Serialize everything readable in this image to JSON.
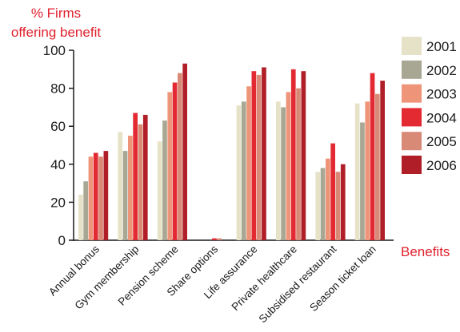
{
  "chart_data": {
    "type": "bar",
    "ylabel_line1": "% Firms",
    "ylabel_line2": "offering benefit",
    "xlabel": "Benefits",
    "ylim": [
      0,
      100
    ],
    "yticks": [
      0,
      20,
      40,
      60,
      80,
      100
    ],
    "grid": false,
    "legend_position": "right",
    "categories": [
      "Annual bonus",
      "Gym membership",
      "Pension scheme",
      "Share options",
      "Life assurance",
      "Private healthcare",
      "Subsidised restaurant",
      "Season ticket loan"
    ],
    "series": [
      {
        "name": "2001",
        "color": "#e6e2c8",
        "values": [
          24,
          57,
          52,
          0,
          71,
          73,
          36,
          72
        ]
      },
      {
        "name": "2002",
        "color": "#a8a793",
        "values": [
          31,
          47,
          63,
          0,
          73,
          70,
          38,
          62
        ]
      },
      {
        "name": "2003",
        "color": "#ee9478",
        "values": [
          44,
          55,
          78,
          0,
          81,
          78,
          43,
          73
        ]
      },
      {
        "name": "2004",
        "color": "#e32a33",
        "values": [
          46,
          67,
          83,
          1,
          89,
          90,
          51,
          88
        ]
      },
      {
        "name": "2005",
        "color": "#d98a77",
        "values": [
          44,
          61,
          88,
          1,
          87,
          80,
          36,
          77
        ]
      },
      {
        "name": "2006",
        "color": "#b01e28",
        "values": [
          47,
          66,
          93,
          0,
          91,
          89,
          40,
          84
        ]
      }
    ]
  }
}
